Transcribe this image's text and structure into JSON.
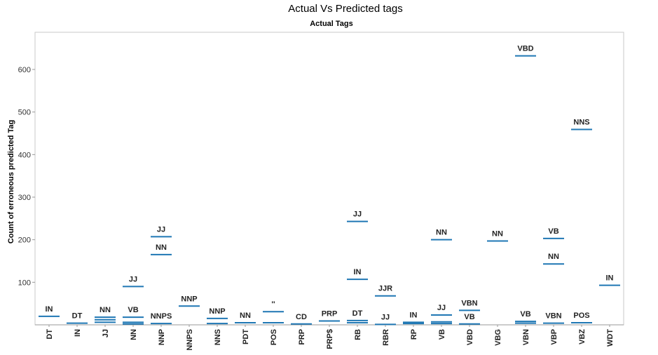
{
  "chart_data": {
    "type": "scatter",
    "title": "Actual Vs Predicted tags",
    "subtitle": "Actual Tags",
    "xlabel": "Actual Tags",
    "ylabel": "Count of erroneous predicted Tag",
    "ylim": [
      0,
      680
    ],
    "yticks": [
      100,
      200,
      300,
      400,
      500,
      600
    ],
    "grid": false,
    "mark_color": "#1f77b4",
    "categories": [
      "DT",
      "IN",
      "JJ",
      "NN",
      "NNP",
      "NNPS",
      "NNS",
      "PDT",
      "POS",
      "PRP",
      "PRP$",
      "RB",
      "RBR",
      "RP",
      "VB",
      "VBD",
      "VBG",
      "VBN",
      "VBP",
      "VBZ",
      "WDT"
    ],
    "points": [
      {
        "category": "DT",
        "label": "IN",
        "value": 20
      },
      {
        "category": "IN",
        "label": "DT",
        "value": 4
      },
      {
        "category": "JJ",
        "label": "NN",
        "value": 18
      },
      {
        "category": "JJ",
        "label": "",
        "value": 12
      },
      {
        "category": "JJ",
        "label": "",
        "value": 6
      },
      {
        "category": "NN",
        "label": "JJ",
        "value": 90
      },
      {
        "category": "NN",
        "label": "VB",
        "value": 18
      },
      {
        "category": "NN",
        "label": "",
        "value": 6
      },
      {
        "category": "NN",
        "label": "",
        "value": 2
      },
      {
        "category": "NNP",
        "label": "JJ",
        "value": 207
      },
      {
        "category": "NNP",
        "label": "NN",
        "value": 165
      },
      {
        "category": "NNP",
        "label": "NNPS",
        "value": 3
      },
      {
        "category": "NNPS",
        "label": "NNP",
        "value": 44
      },
      {
        "category": "NNS",
        "label": "NNP",
        "value": 15
      },
      {
        "category": "NNS",
        "label": "",
        "value": 3
      },
      {
        "category": "PDT",
        "label": "NN",
        "value": 5
      },
      {
        "category": "POS",
        "label": "''",
        "value": 31
      },
      {
        "category": "POS",
        "label": "",
        "value": 5
      },
      {
        "category": "PRP",
        "label": "CD",
        "value": 2
      },
      {
        "category": "PRP$",
        "label": "PRP",
        "value": 9
      },
      {
        "category": "RB",
        "label": "JJ",
        "value": 243
      },
      {
        "category": "RB",
        "label": "IN",
        "value": 107
      },
      {
        "category": "RB",
        "label": "DT",
        "value": 10
      },
      {
        "category": "RB",
        "label": "",
        "value": 5
      },
      {
        "category": "RBR",
        "label": "JJR",
        "value": 68
      },
      {
        "category": "RBR",
        "label": "JJ",
        "value": 1
      },
      {
        "category": "RP",
        "label": "IN",
        "value": 6
      },
      {
        "category": "RP",
        "label": "",
        "value": 3
      },
      {
        "category": "VB",
        "label": "NN",
        "value": 200
      },
      {
        "category": "VB",
        "label": "JJ",
        "value": 23
      },
      {
        "category": "VB",
        "label": "",
        "value": 7
      },
      {
        "category": "VB",
        "label": "",
        "value": 3
      },
      {
        "category": "VBD",
        "label": "VBN",
        "value": 34
      },
      {
        "category": "VBD",
        "label": "VB",
        "value": 2
      },
      {
        "category": "VBG",
        "label": "NN",
        "value": 197
      },
      {
        "category": "VBN",
        "label": "VBD",
        "value": 632
      },
      {
        "category": "VBN",
        "label": "VB",
        "value": 8
      },
      {
        "category": "VBN",
        "label": "",
        "value": 4
      },
      {
        "category": "VBP",
        "label": "VB",
        "value": 203
      },
      {
        "category": "VBP",
        "label": "NN",
        "value": 143
      },
      {
        "category": "VBP",
        "label": "VBN",
        "value": 4
      },
      {
        "category": "VBZ",
        "label": "NNS",
        "value": 459
      },
      {
        "category": "VBZ",
        "label": "POS",
        "value": 5
      },
      {
        "category": "WDT",
        "label": "IN",
        "value": 93
      }
    ]
  }
}
